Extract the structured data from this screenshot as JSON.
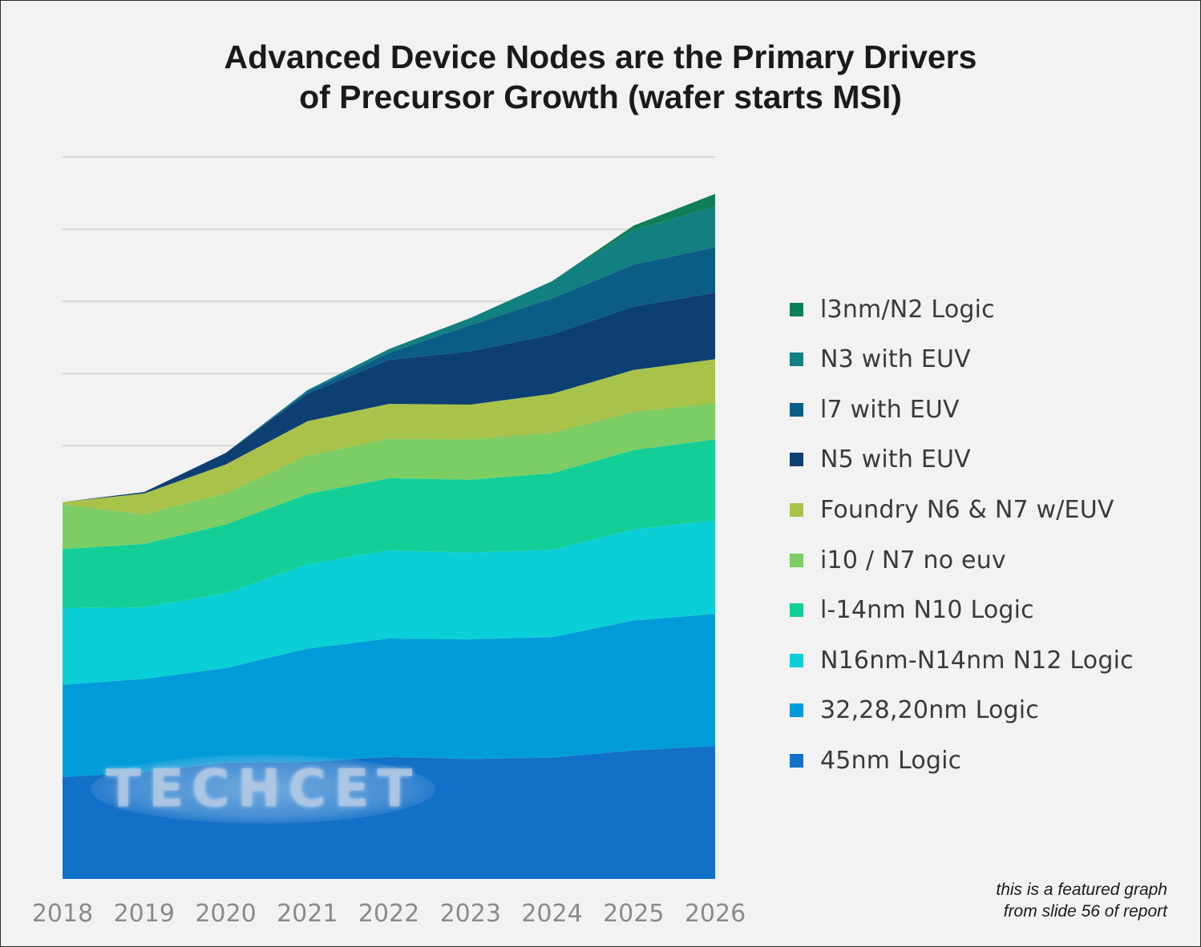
{
  "chart_data": {
    "type": "area",
    "stacked": true,
    "title": "Advanced Device Nodes are the Primary Drivers of Precursor Growth (wafer starts MSI)",
    "title_lines": [
      "Advanced Device Nodes are the Primary Drivers",
      "of Precursor Growth (wafer starts MSI)"
    ],
    "categories": [
      "2018",
      "2019",
      "2020",
      "2021",
      "2022",
      "2023",
      "2024",
      "2025",
      "2026"
    ],
    "ylim": [
      0,
      10
    ],
    "gridlines": [
      1,
      2,
      3,
      4,
      5,
      6,
      7,
      8,
      9,
      10
    ],
    "grid": true,
    "legend_position": "right",
    "series": [
      {
        "name": "45nm Logic",
        "color": "#1270c8",
        "values": [
          1.41,
          1.48,
          1.61,
          1.62,
          1.69,
          1.66,
          1.68,
          1.78,
          1.84
        ]
      },
      {
        "name": "32,28,20nm Logic",
        "color": "#009cd9",
        "values": [
          1.28,
          1.29,
          1.31,
          1.57,
          1.64,
          1.66,
          1.67,
          1.8,
          1.83
        ]
      },
      {
        "name": "N16nm-N14nm N12 Logic",
        "color": "#0bcfd6",
        "values": [
          1.06,
          0.99,
          1.04,
          1.17,
          1.22,
          1.2,
          1.21,
          1.26,
          1.3
        ]
      },
      {
        "name": "l-14nm N10 Logic",
        "color": "#13cf97",
        "values": [
          0.82,
          0.88,
          0.95,
          0.97,
          1.0,
          1.01,
          1.06,
          1.1,
          1.12
        ]
      },
      {
        "name": "i10 / N7 no euv",
        "color": "#7ccd63",
        "values": [
          0.62,
          0.41,
          0.43,
          0.53,
          0.55,
          0.56,
          0.56,
          0.53,
          0.5
        ]
      },
      {
        "name": "Foundry N6 & N7 w/EUV",
        "color": "#a8c24a",
        "values": [
          0.03,
          0.29,
          0.4,
          0.48,
          0.48,
          0.48,
          0.54,
          0.58,
          0.61
        ]
      },
      {
        "name": "N5 with EUV",
        "color": "#0d3f73",
        "values": [
          0.0,
          0.02,
          0.16,
          0.38,
          0.61,
          0.74,
          0.82,
          0.88,
          0.92
        ]
      },
      {
        "name": "l7 with EUV",
        "color": "#0b5d86",
        "values": [
          0.0,
          0.0,
          0.0,
          0.03,
          0.1,
          0.36,
          0.5,
          0.58,
          0.63
        ]
      },
      {
        "name": "N3 with EUV",
        "color": "#127f80",
        "values": [
          0.0,
          0.0,
          0.0,
          0.02,
          0.05,
          0.1,
          0.24,
          0.48,
          0.56
        ]
      },
      {
        "name": "l3nm/N2 Logic",
        "color": "#0f7e58",
        "values": [
          0.0,
          0.0,
          0.0,
          0.0,
          0.0,
          0.0,
          0.0,
          0.06,
          0.18
        ]
      }
    ]
  },
  "watermark": "TECHCET",
  "note_lines": [
    "this is a featured graph",
    "from slide 56 of report"
  ]
}
